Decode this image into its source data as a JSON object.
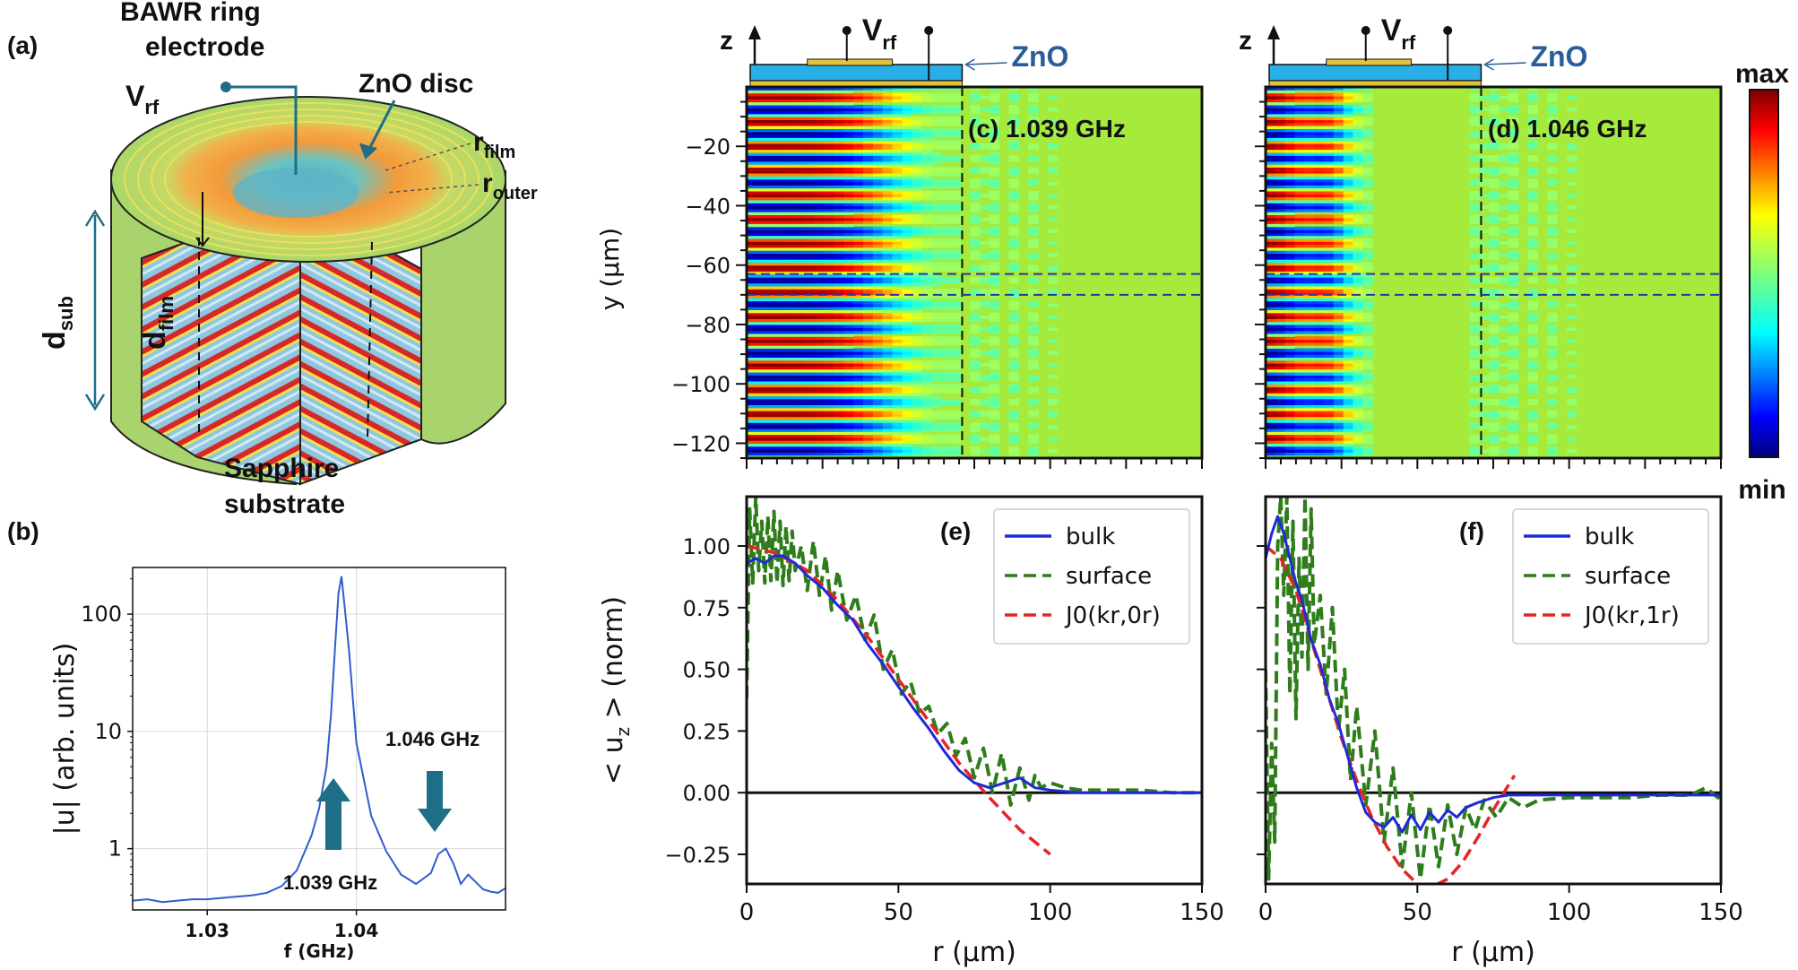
{
  "colors": {
    "zno": "#29aee8",
    "electrode": "#e2c23c",
    "zno_label": "#2a5c9c",
    "arrow_teal": "#1d6e86",
    "bulk": "#1f2bd6",
    "surface": "#2e7d1a",
    "bessel": "#e82424",
    "field_bg": "#a6ea3c"
  },
  "labels": {
    "panel_a": "(a)",
    "panel_b": "(b)",
    "bawr_line1": "BAWR ring",
    "bawr_line2": "electrode",
    "vrf_main": "V",
    "vrf_sub": "rf",
    "zno_disc": "ZnO disc",
    "r_film_main": "r",
    "r_film_sub": "film",
    "r_outer_main": "r",
    "r_outer_sub": "outer",
    "d_sub_main": "d",
    "d_sub_sub": "sub",
    "d_film_main": "d",
    "d_film_sub": "film",
    "sapphire_line1": "Sapphire",
    "sapphire_line2": "substrate",
    "z_axis": "z",
    "zno_short": "ZnO",
    "colorbar_max": "max",
    "colorbar_min": "min"
  },
  "chart_data": [
    {
      "id": "b",
      "type": "line",
      "xlabel": "f (GHz)",
      "ylabel": "|u| (arb. units)",
      "xscale": "linear",
      "yscale": "log",
      "xlim": [
        1.025,
        1.05
      ],
      "ylim": [
        0.3,
        250
      ],
      "xticks": [
        1.03,
        1.04
      ],
      "xtick_labels": [
        "1.03",
        "1.04"
      ],
      "yticks": [
        1,
        10,
        100
      ],
      "ytick_labels": [
        "1",
        "10",
        "100"
      ],
      "grid": true,
      "series": [
        {
          "name": "|u|",
          "x": [
            1.025,
            1.026,
            1.027,
            1.028,
            1.029,
            1.03,
            1.031,
            1.032,
            1.033,
            1.034,
            1.035,
            1.036,
            1.037,
            1.0375,
            1.038,
            1.0383,
            1.0386,
            1.0388,
            1.039,
            1.0392,
            1.0395,
            1.04,
            1.041,
            1.042,
            1.043,
            1.044,
            1.045,
            1.0455,
            1.046,
            1.0465,
            1.047,
            1.0475,
            1.048,
            1.0485,
            1.049,
            1.0495,
            1.05
          ],
          "y": [
            0.36,
            0.37,
            0.35,
            0.36,
            0.37,
            0.37,
            0.38,
            0.39,
            0.4,
            0.42,
            0.48,
            0.65,
            1.3,
            2.2,
            5.0,
            14,
            60,
            150,
            210,
            120,
            50,
            8.0,
            1.9,
            0.95,
            0.6,
            0.5,
            0.62,
            0.9,
            1.0,
            0.75,
            0.5,
            0.6,
            0.52,
            0.45,
            0.43,
            0.42,
            0.46
          ]
        }
      ],
      "annotations": [
        "1.046 GHz",
        "1.039 GHz"
      ]
    },
    {
      "id": "c",
      "type": "heatmap",
      "title": "(c) 1.039 GHz",
      "ylabel": "y (μm)",
      "xlim": [
        0,
        150
      ],
      "ylim": [
        -125,
        0
      ],
      "yticks": [
        -20,
        -40,
        -60,
        -80,
        -100,
        -120
      ],
      "ytick_labels": [
        "−20",
        "−40",
        "−60",
        "−80",
        "−100",
        "−120"
      ],
      "film_radius": 71,
      "band_y": [
        -63,
        -70
      ],
      "fringe_period": 8.2,
      "decay_radius": 48,
      "field": "u_z",
      "vrf_label": "V",
      "vrf_sub": "rf",
      "zno_label": "ZnO"
    },
    {
      "id": "d",
      "type": "heatmap",
      "title": "(d) 1.046 GHz",
      "xlim": [
        0,
        150
      ],
      "ylim": [
        -125,
        0
      ],
      "film_radius": 71,
      "band_y": [
        -63,
        -70
      ],
      "fringe_period": 8.2,
      "decay_radius": 26,
      "field": "u_z",
      "vrf_label": "V",
      "vrf_sub": "rf",
      "zno_label": "ZnO"
    },
    {
      "id": "e",
      "type": "line",
      "panel_label": "(e)",
      "xlabel": "r (μm)",
      "ylabel": "< u_z > (norm)",
      "xlim": [
        0,
        150
      ],
      "ylim": [
        -0.37,
        1.2
      ],
      "xticks": [
        0,
        50,
        100,
        150
      ],
      "xtick_labels": [
        "0",
        "50",
        "100",
        "150"
      ],
      "yticks": [
        1.0,
        0.75,
        0.5,
        0.25,
        0.0,
        -0.25
      ],
      "ytick_labels": [
        "1.00",
        "0.75",
        "0.50",
        "0.25",
        "0.00",
        "−0.25"
      ],
      "series": [
        {
          "name": "bulk",
          "x": [
            0,
            3,
            6,
            9,
            12,
            16,
            20,
            25,
            30,
            35,
            40,
            45,
            50,
            55,
            60,
            65,
            70,
            75,
            80,
            85,
            90,
            95,
            100,
            110,
            120,
            130,
            140,
            150
          ],
          "y": [
            0.93,
            0.95,
            0.93,
            0.96,
            0.96,
            0.93,
            0.88,
            0.83,
            0.76,
            0.7,
            0.6,
            0.52,
            0.43,
            0.34,
            0.26,
            0.17,
            0.09,
            0.04,
            0.02,
            0.04,
            0.06,
            0.02,
            0.01,
            0.0,
            0.0,
            0.0,
            0.0,
            0.0
          ]
        },
        {
          "name": "surface",
          "x": [
            0,
            1,
            2,
            3,
            4,
            5,
            6,
            7,
            8,
            9,
            10,
            11,
            12,
            13,
            14,
            15,
            16,
            18,
            20,
            22,
            24,
            26,
            28,
            30,
            33,
            36,
            39,
            42,
            45,
            48,
            51,
            54,
            57,
            60,
            63,
            66,
            69,
            72,
            75,
            78,
            81,
            84,
            87,
            90,
            93,
            95,
            97,
            100,
            105,
            110,
            120,
            130,
            140,
            150
          ],
          "y": [
            0.38,
            1.15,
            0.85,
            1.2,
            0.9,
            1.1,
            0.85,
            1.12,
            0.86,
            1.14,
            0.85,
            1.1,
            0.84,
            1.08,
            0.86,
            1.06,
            0.9,
            1.0,
            0.82,
            1.02,
            0.8,
            0.96,
            0.74,
            0.9,
            0.7,
            0.8,
            0.62,
            0.72,
            0.5,
            0.58,
            0.4,
            0.45,
            0.32,
            0.35,
            0.24,
            0.28,
            0.15,
            0.22,
            0.06,
            0.18,
            0.0,
            0.16,
            -0.05,
            0.1,
            -0.03,
            0.07,
            0.02,
            0.04,
            0.02,
            0.01,
            0.01,
            0.01,
            0.0,
            0.0
          ]
        },
        {
          "name": "J0(k_r,0 r)",
          "x": [
            0,
            10,
            20,
            30,
            40,
            50,
            60,
            70,
            80,
            90,
            100
          ],
          "y": [
            1.0,
            0.97,
            0.9,
            0.78,
            0.63,
            0.46,
            0.29,
            0.12,
            -0.02,
            -0.15,
            -0.25
          ]
        }
      ],
      "legend": [
        "bulk",
        "surface",
        "J0(kr,0r)"
      ],
      "legend_location": "top-right"
    },
    {
      "id": "f",
      "type": "line",
      "panel_label": "(f)",
      "xlabel": "r (μm)",
      "xlim": [
        0,
        150
      ],
      "ylim": [
        -0.37,
        1.2
      ],
      "xticks": [
        0,
        50,
        100,
        150
      ],
      "xtick_labels": [
        "0",
        "50",
        "100",
        "150"
      ],
      "series": [
        {
          "name": "bulk",
          "x": [
            0,
            2,
            4,
            6,
            8,
            10,
            12,
            15,
            18,
            21,
            24,
            27,
            30,
            33,
            36,
            39,
            42,
            45,
            48,
            51,
            54,
            57,
            60,
            63,
            66,
            70,
            75,
            80,
            90,
            100,
            110,
            120,
            130,
            140,
            150
          ],
          "y": [
            0.95,
            1.05,
            1.12,
            1.05,
            0.95,
            0.85,
            0.78,
            0.62,
            0.52,
            0.38,
            0.28,
            0.15,
            0.02,
            -0.08,
            -0.12,
            -0.14,
            -0.1,
            -0.16,
            -0.09,
            -0.15,
            -0.08,
            -0.12,
            -0.07,
            -0.1,
            -0.06,
            -0.04,
            -0.02,
            -0.01,
            -0.01,
            -0.01,
            -0.01,
            -0.01,
            -0.01,
            -0.01,
            -0.01
          ]
        },
        {
          "name": "surface",
          "x": [
            0,
            1,
            2,
            3,
            4,
            5,
            6,
            7,
            8,
            9,
            10,
            11,
            12,
            13,
            14,
            15,
            16,
            18,
            20,
            22,
            24,
            26,
            28,
            30,
            33,
            36,
            39,
            42,
            45,
            48,
            51,
            54,
            57,
            60,
            63,
            66,
            69,
            72,
            76,
            80,
            85,
            90,
            100,
            110,
            120,
            130,
            140,
            145,
            150
          ],
          "y": [
            0.5,
            -0.35,
            0.2,
            -0.2,
            1.0,
            1.2,
            0.8,
            1.2,
            0.4,
            1.1,
            0.3,
            0.95,
            0.55,
            1.2,
            0.5,
            1.15,
            0.6,
            0.8,
            0.4,
            0.75,
            0.25,
            0.5,
            0.05,
            0.35,
            -0.05,
            0.25,
            -0.2,
            0.1,
            -0.3,
            0.0,
            -0.35,
            -0.05,
            -0.3,
            -0.05,
            -0.25,
            -0.06,
            -0.15,
            -0.03,
            -0.1,
            -0.02,
            -0.06,
            -0.03,
            -0.02,
            -0.02,
            -0.02,
            -0.01,
            -0.01,
            0.02,
            -0.03
          ]
        },
        {
          "name": "J0(k_r,1 r)",
          "x": [
            0,
            5,
            10,
            15,
            20,
            25,
            30,
            35,
            40,
            45,
            50,
            55,
            60,
            65,
            70,
            75,
            80,
            82
          ],
          "y": [
            1.0,
            0.95,
            0.82,
            0.62,
            0.42,
            0.22,
            0.05,
            -0.1,
            -0.22,
            -0.31,
            -0.37,
            -0.38,
            -0.35,
            -0.28,
            -0.18,
            -0.07,
            0.03,
            0.07
          ]
        }
      ],
      "legend": [
        "bulk",
        "surface",
        "J0(kr,1r)"
      ],
      "legend_location": "top-right"
    }
  ]
}
